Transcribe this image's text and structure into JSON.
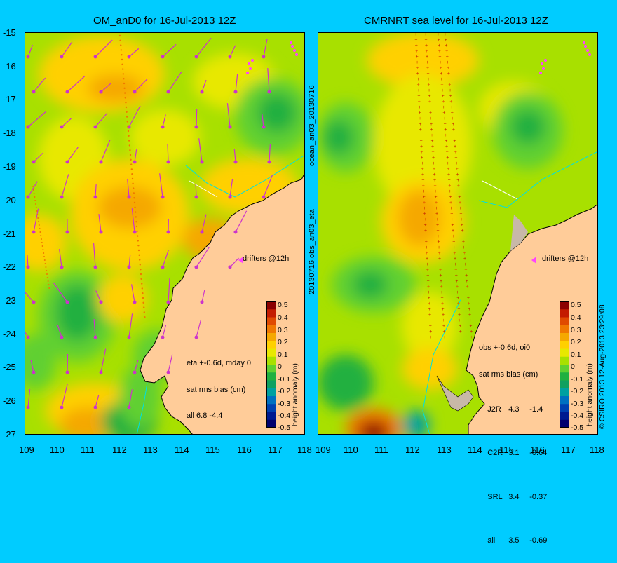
{
  "titles": {
    "left": "OM_anD0 for 16-Jul-2013 12Z",
    "right": "CMRNRT sea level  for 16-Jul-2013 12Z"
  },
  "yticks": [
    "-15",
    "-16",
    "-17",
    "-18",
    "-19",
    "-20",
    "-21",
    "-22",
    "-23",
    "-24",
    "-25",
    "-26",
    "-27"
  ],
  "xticks_left": [
    "109",
    "110",
    "111",
    "112",
    "113",
    "114",
    "115",
    "116",
    "117",
    "118"
  ],
  "xticks_right": [
    "109",
    "110",
    "111",
    "112",
    "113",
    "114",
    "115",
    "116",
    "117",
    "118"
  ],
  "vertical_label_top": "ocean_an03_20130716",
  "vertical_label_bottom": "20130716.obs_an03_eta",
  "copyright": "© CSIRO 2013   12-Aug-2013 23:29:08",
  "drifters_label": "drifters @12h",
  "left_stats": {
    "line1": "eta +-0.6d, mday 0",
    "line2": "sat rms bias (cm)",
    "line3": "all 6.8 -4.4"
  },
  "right_stats": {
    "line1": "obs +-0.6d, oi0",
    "line2": "sat rms bias (cm)",
    "rows": [
      {
        "name": "J2R",
        "rms": "4.3",
        "bias": "-1.4"
      },
      {
        "name": "C2R",
        "rms": "3.1",
        "bias": "-0.64"
      },
      {
        "name": "SRL",
        "rms": "3.4",
        "bias": "-0.37"
      },
      {
        "name": "all",
        "rms": "3.5",
        "bias": "-0.69"
      }
    ]
  },
  "colorbar": {
    "label": "height anomaly (m)",
    "ticks": [
      "0.5",
      "0.4",
      "0.3",
      "0.2",
      "0.1",
      "0",
      "-0.1",
      "-0.2",
      "-0.3",
      "-0.4",
      "-0.5"
    ],
    "colors": [
      "#8b0000",
      "#c41c00",
      "#e04a00",
      "#f07800",
      "#f5a800",
      "#ffd000",
      "#e8e800",
      "#a8e000",
      "#60d030",
      "#20b040",
      "#10a060",
      "#00a0a0",
      "#0070c0",
      "#0040b0",
      "#001a90",
      "#00006e"
    ]
  },
  "map_colors": {
    "land": "#ffcc99",
    "coast": "#000000",
    "river": "#00e0e0",
    "vector": "#cc33cc",
    "drifter": "#ff44ff"
  }
}
